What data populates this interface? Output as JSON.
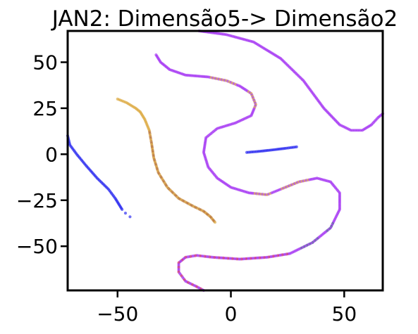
{
  "chart_data": {
    "type": "scatter",
    "title": "JAN2: Dimensão5-> Dimensão2",
    "xlabel": "",
    "ylabel": "",
    "xlim": [
      -72,
      67
    ],
    "ylim": [
      -74,
      67
    ],
    "x_ticks": [
      -50,
      0,
      50
    ],
    "y_ticks": [
      -50,
      -25,
      0,
      25,
      50
    ],
    "x_tick_labels": [
      "−50",
      "0",
      "50"
    ],
    "y_tick_labels": [
      "−50",
      "−25",
      "0",
      "25",
      "50"
    ],
    "grid": false,
    "legend": false,
    "colors": {
      "blue": "#1010ee",
      "purple": "#9b1ff2",
      "orange": "#d9a02c",
      "brown": "#b3651e",
      "red": "#d01a4a",
      "slate": "#3c4a8a"
    },
    "series": [
      {
        "color": "blue",
        "points": [
          [
            -72,
            10
          ],
          [
            -71,
            5
          ],
          [
            -68,
            0
          ],
          [
            -64,
            -6
          ],
          [
            -59,
            -13
          ],
          [
            -54,
            -19
          ],
          [
            -51,
            -24
          ],
          [
            -49,
            -28
          ],
          [
            -48,
            -30
          ]
        ],
        "tail": [
          [
            -46.5,
            -32
          ],
          [
            -44.5,
            -34
          ]
        ]
      },
      {
        "color": "blue",
        "points": [
          [
            7,
            1
          ],
          [
            12,
            1.5
          ],
          [
            18,
            2.3
          ],
          [
            24,
            3.2
          ],
          [
            29,
            4
          ]
        ]
      },
      {
        "color": "orange",
        "points": [
          [
            -50,
            30
          ],
          [
            -46,
            28
          ],
          [
            -42,
            25
          ],
          [
            -40,
            23
          ],
          [
            -38,
            19
          ],
          [
            -36,
            13
          ],
          [
            -35,
            6
          ],
          [
            -34,
            -2
          ],
          [
            -32,
            -10
          ],
          [
            -28,
            -18
          ],
          [
            -23,
            -24
          ],
          [
            -17,
            -28
          ],
          [
            -12,
            -31
          ],
          [
            -9,
            -34
          ],
          [
            -7,
            -37
          ]
        ],
        "accent": "brown",
        "accent_from": 5
      },
      {
        "color": "purple",
        "points": [
          [
            -33,
            54
          ],
          [
            -31,
            50
          ],
          [
            -27,
            46
          ],
          [
            -20,
            43
          ],
          [
            -10,
            42
          ],
          [
            -2,
            40
          ],
          [
            4,
            37
          ],
          [
            9,
            33
          ],
          [
            11,
            27
          ],
          [
            9,
            21
          ],
          [
            2,
            17
          ],
          [
            -6,
            14
          ],
          [
            -11,
            9
          ],
          [
            -12,
            1
          ],
          [
            -10,
            -7
          ],
          [
            -6,
            -13
          ],
          [
            0,
            -18
          ],
          [
            8,
            -21
          ],
          [
            16,
            -22
          ],
          [
            22,
            -19
          ],
          [
            30,
            -15
          ],
          [
            38,
            -13
          ],
          [
            44,
            -15
          ],
          [
            48,
            -21
          ],
          [
            48,
            -30
          ],
          [
            44,
            -40
          ],
          [
            36,
            -48
          ],
          [
            26,
            -54
          ],
          [
            16,
            -56
          ],
          [
            4,
            -57
          ],
          [
            -8,
            -56
          ],
          [
            -15,
            -55
          ],
          [
            -20,
            -56
          ],
          [
            -23,
            -59
          ],
          [
            -23,
            -64
          ],
          [
            -20,
            -69
          ],
          [
            -15,
            -72
          ],
          [
            -12,
            -74
          ]
        ],
        "accent": "orange",
        "accent_points": [
          [
            -5,
            41
          ],
          [
            -2,
            40
          ],
          [
            10,
            30
          ],
          [
            14,
            -21
          ],
          [
            26,
            -17
          ],
          [
            30,
            -14
          ]
        ],
        "red_from": 27,
        "slate_points": [
          [
            44,
            -40
          ],
          [
            36,
            -48
          ],
          [
            34,
            -50
          ]
        ]
      },
      {
        "color": "purple",
        "points": [
          [
            -14,
            67
          ],
          [
            -2,
            65
          ],
          [
            10,
            61
          ],
          [
            22,
            52
          ],
          [
            32,
            40
          ],
          [
            41,
            25
          ],
          [
            48,
            16
          ],
          [
            53,
            13
          ],
          [
            58,
            13
          ],
          [
            62,
            16
          ],
          [
            65,
            20
          ],
          [
            67,
            22
          ]
        ]
      }
    ]
  }
}
